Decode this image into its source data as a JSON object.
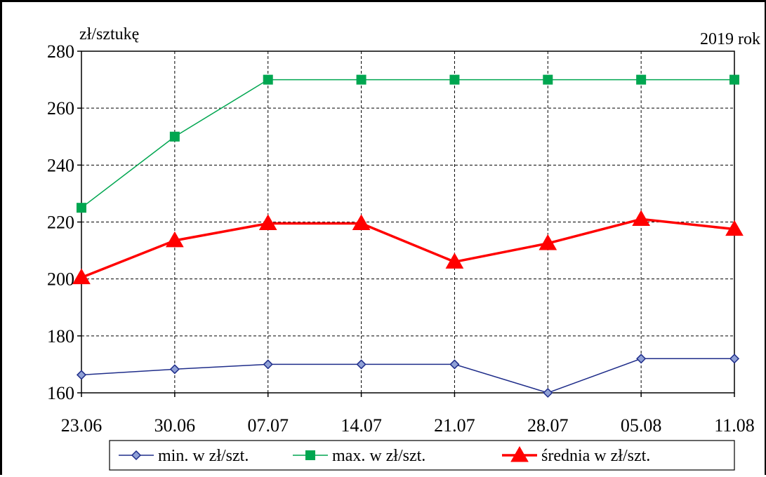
{
  "chart_data": {
    "type": "line",
    "unit_label": "zł/sztukę",
    "year_label": "2019 rok",
    "categories": [
      "23.06",
      "30.06",
      "07.07",
      "14.07",
      "21.07",
      "28.07",
      "05.08",
      "11.08"
    ],
    "ylim": [
      160,
      280
    ],
    "yticks": [
      "160",
      "180",
      "200",
      "220",
      "240",
      "260",
      "280"
    ],
    "grid": true,
    "legend_position": "bottom",
    "series": [
      {
        "name": "min. w zł/szt.",
        "values": [
          166.3,
          168.3,
          170,
          170,
          170,
          160,
          172,
          172
        ],
        "color": "#1f2d8a",
        "marker": "diamond"
      },
      {
        "name": "max. w zł/szt.",
        "values": [
          225,
          250,
          270,
          270,
          270,
          270,
          270,
          270
        ],
        "color": "#00a650",
        "marker": "square"
      },
      {
        "name": "średnia w zł/szt.",
        "values": [
          200.5,
          213.5,
          219.5,
          219.5,
          206,
          212.5,
          221,
          217.5
        ],
        "color": "#ff0000",
        "marker": "triangle"
      }
    ]
  }
}
